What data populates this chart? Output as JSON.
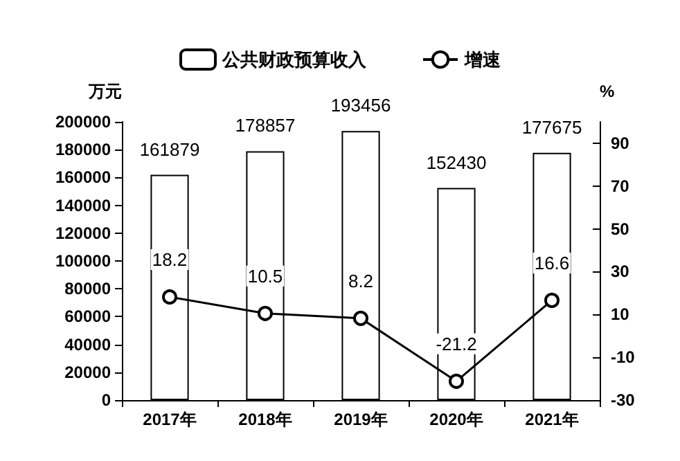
{
  "chart_data": {
    "type": "bar",
    "ylabel": "万元",
    "y2label": "%",
    "categories": [
      "2017年",
      "2018年",
      "2019年",
      "2020年",
      "2021年"
    ],
    "series": [
      {
        "name": "公共财政预算收入",
        "color": "#ffffff",
        "values": [
          161879,
          178857,
          193456,
          152430,
          177675
        ]
      },
      {
        "name": "增速",
        "type": "line",
        "axis": "y2",
        "color": "#000000",
        "values": [
          18.2,
          10.5,
          8.2,
          -21.2,
          16.6
        ]
      }
    ],
    "ylim": [
      0,
      200000
    ],
    "yticks": [
      0,
      20000,
      40000,
      60000,
      80000,
      100000,
      120000,
      140000,
      160000,
      180000,
      200000
    ],
    "y2lim": [
      -30,
      100
    ],
    "y2ticks": [
      -30,
      -10,
      10,
      30,
      50,
      70,
      90
    ],
    "data_labels": true,
    "grid": false,
    "legend": "top",
    "marker": "circle"
  }
}
